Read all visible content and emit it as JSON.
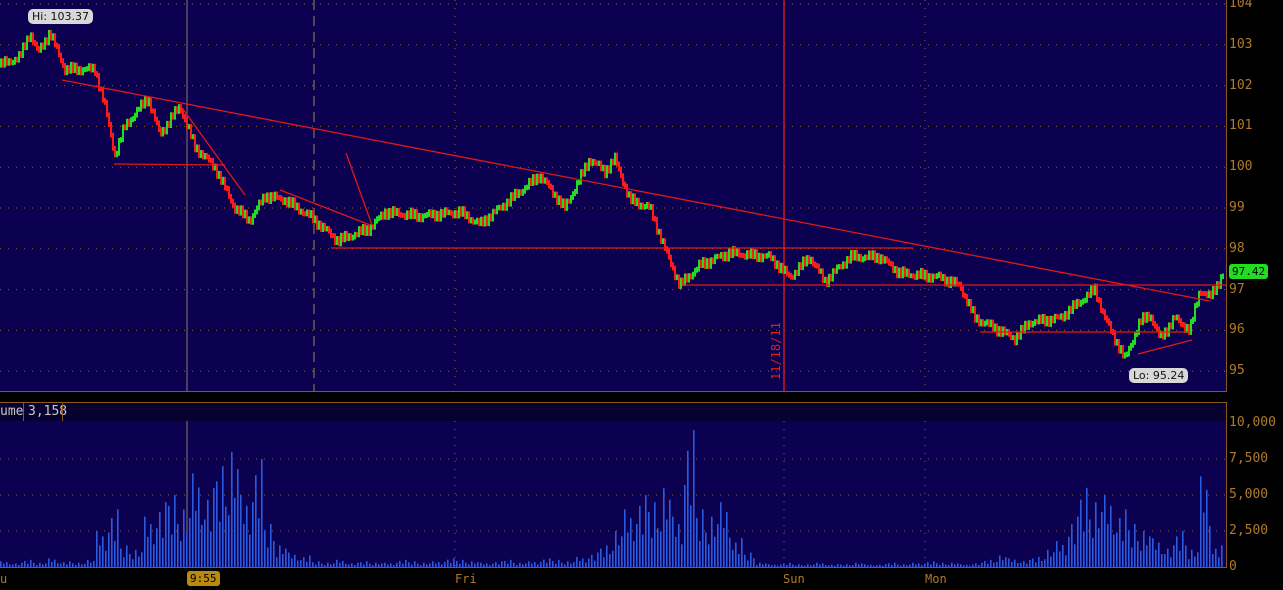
{
  "chart_data": [
    {
      "type": "line",
      "panel": "price",
      "y_ticks": [
        "104",
        "103",
        "102",
        "101",
        "100",
        "99",
        "98",
        "97",
        "96",
        "95"
      ],
      "ylim": [
        94.9,
        104.1
      ],
      "grid": true,
      "x_labels": [
        "u",
        "Fri",
        "Sun",
        "Mon"
      ],
      "hi_label": "Hi: 103.37",
      "lo_label": "Lo: 95.24",
      "last_price": "97.42",
      "date_marker": "11/18/11",
      "crosshair_time": "9:55",
      "up_color": "#22dd22",
      "down_color": "#ff1a1a",
      "price_path": [
        [
          0,
          102.5
        ],
        [
          20,
          102.7
        ],
        [
          30,
          103.3
        ],
        [
          38,
          102.8
        ],
        [
          50,
          103.3
        ],
        [
          65,
          102.4
        ],
        [
          95,
          102.4
        ],
        [
          105,
          101.5
        ],
        [
          115,
          100.3
        ],
        [
          125,
          101
        ],
        [
          148,
          101.7
        ],
        [
          160,
          100.8
        ],
        [
          180,
          101.5
        ],
        [
          195,
          100.5
        ],
        [
          215,
          100.0
        ],
        [
          235,
          99.0
        ],
        [
          250,
          98.7
        ],
        [
          265,
          99.3
        ],
        [
          285,
          99.2
        ],
        [
          310,
          98.8
        ],
        [
          338,
          98.2
        ],
        [
          370,
          98.5
        ],
        [
          385,
          98.9
        ],
        [
          420,
          98.8
        ],
        [
          460,
          98.9
        ],
        [
          480,
          98.6
        ],
        [
          510,
          99.2
        ],
        [
          540,
          99.8
        ],
        [
          565,
          99.0
        ],
        [
          590,
          100.2
        ],
        [
          605,
          99.9
        ],
        [
          615,
          100.2
        ],
        [
          630,
          99.2
        ],
        [
          650,
          99.0
        ],
        [
          665,
          98.0
        ],
        [
          680,
          97.1
        ],
        [
          700,
          97.6
        ],
        [
          730,
          97.9
        ],
        [
          770,
          97.8
        ],
        [
          790,
          97.3
        ],
        [
          810,
          97.8
        ],
        [
          825,
          97.2
        ],
        [
          850,
          97.8
        ],
        [
          880,
          97.8
        ],
        [
          900,
          97.4
        ],
        [
          940,
          97.3
        ],
        [
          960,
          97.1
        ],
        [
          975,
          96.3
        ],
        [
          1000,
          96.0
        ],
        [
          1015,
          95.8
        ],
        [
          1030,
          96.2
        ],
        [
          1060,
          96.3
        ],
        [
          1075,
          96.6
        ],
        [
          1095,
          97.0
        ],
        [
          1105,
          96.3
        ],
        [
          1125,
          95.3
        ],
        [
          1140,
          96.2
        ],
        [
          1150,
          96.4
        ],
        [
          1160,
          95.8
        ],
        [
          1175,
          96.3
        ],
        [
          1190,
          96.0
        ],
        [
          1200,
          97.0
        ],
        [
          1210,
          96.8
        ],
        [
          1224,
          97.42
        ]
      ]
    },
    {
      "type": "bar",
      "panel": "volume",
      "title": "ume",
      "current_value": "3,158",
      "y_ticks": [
        "10,000",
        "7,500",
        "5,000",
        "2,500",
        "0"
      ],
      "ylim": [
        0,
        10000
      ],
      "bar_color": "#2a5ae0",
      "values": [
        400,
        300,
        500,
        300,
        600,
        400,
        300,
        500,
        2500,
        4000,
        1500,
        1200,
        3500,
        4500,
        5000,
        4000,
        6500,
        5500,
        7000,
        8000,
        5000,
        7500,
        3000,
        1500,
        1000,
        800,
        400,
        300,
        500,
        300,
        400,
        300,
        300,
        500,
        400,
        300,
        400,
        600,
        500,
        400,
        300,
        400,
        500,
        300,
        400,
        600,
        500,
        400,
        700,
        1000,
        1500,
        2500,
        4000,
        5000,
        4500,
        5500,
        3500,
        9500,
        4000,
        3500,
        4500,
        2000,
        1000,
        300,
        200,
        300,
        200,
        200,
        300,
        200,
        200,
        300,
        200,
        200,
        300,
        200,
        300,
        400,
        300,
        300,
        200,
        300,
        500,
        800,
        600,
        500,
        700,
        1200,
        1800,
        3500,
        5500,
        4500,
        5000,
        4000,
        3000,
        2500,
        2000,
        1500,
        2500,
        1200,
        6300,
        1500
      ]
    }
  ]
}
